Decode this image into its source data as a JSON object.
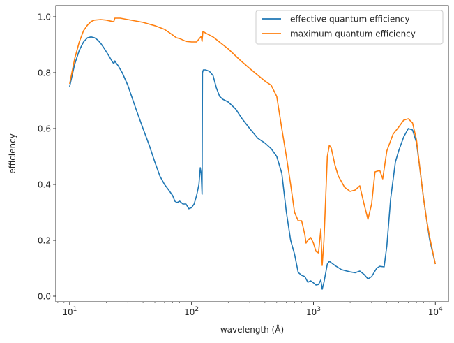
{
  "chart_data": {
    "type": "line",
    "title": "",
    "xlabel": "wavelength (Å)",
    "ylabel": "efficiency",
    "xscale": "log",
    "xlim": [
      7.7,
      12800
    ],
    "ylim": [
      -0.02,
      1.04
    ],
    "x_ticks": [
      {
        "value": 10,
        "base": "10",
        "exp": "1"
      },
      {
        "value": 100,
        "base": "10",
        "exp": "2"
      },
      {
        "value": 1000,
        "base": "10",
        "exp": "3"
      },
      {
        "value": 10000,
        "base": "10",
        "exp": "4"
      }
    ],
    "y_ticks": [
      {
        "value": 0.0,
        "label": "0.0"
      },
      {
        "value": 0.2,
        "label": "0.2"
      },
      {
        "value": 0.4,
        "label": "0.4"
      },
      {
        "value": 0.6,
        "label": "0.6"
      },
      {
        "value": 0.8,
        "label": "0.8"
      },
      {
        "value": 1.0,
        "label": "1.0"
      }
    ],
    "grid": false,
    "legend": "top-right",
    "series": [
      {
        "name": "effective quantum efficiency",
        "color": "#1f77b4",
        "points": [
          [
            10,
            0.75
          ],
          [
            11,
            0.83
          ],
          [
            12,
            0.88
          ],
          [
            13,
            0.91
          ],
          [
            14,
            0.925
          ],
          [
            15,
            0.928
          ],
          [
            16,
            0.925
          ],
          [
            17,
            0.917
          ],
          [
            18,
            0.905
          ],
          [
            19,
            0.89
          ],
          [
            20,
            0.875
          ],
          [
            21,
            0.86
          ],
          [
            22,
            0.845
          ],
          [
            23,
            0.832
          ],
          [
            23.5,
            0.842
          ],
          [
            24,
            0.835
          ],
          [
            25,
            0.825
          ],
          [
            27,
            0.8
          ],
          [
            30,
            0.755
          ],
          [
            35,
            0.67
          ],
          [
            40,
            0.6
          ],
          [
            45,
            0.54
          ],
          [
            50,
            0.48
          ],
          [
            55,
            0.43
          ],
          [
            60,
            0.4
          ],
          [
            65,
            0.38
          ],
          [
            70,
            0.36
          ],
          [
            73,
            0.34
          ],
          [
            76,
            0.335
          ],
          [
            80,
            0.34
          ],
          [
            85,
            0.33
          ],
          [
            90,
            0.33
          ],
          [
            95,
            0.313
          ],
          [
            100,
            0.317
          ],
          [
            105,
            0.33
          ],
          [
            110,
            0.36
          ],
          [
            115,
            0.4
          ],
          [
            118,
            0.46
          ],
          [
            120,
            0.44
          ],
          [
            122,
            0.365
          ],
          [
            123,
            0.8
          ],
          [
            125,
            0.81
          ],
          [
            130,
            0.81
          ],
          [
            140,
            0.805
          ],
          [
            150,
            0.79
          ],
          [
            160,
            0.745
          ],
          [
            170,
            0.715
          ],
          [
            180,
            0.705
          ],
          [
            200,
            0.695
          ],
          [
            230,
            0.67
          ],
          [
            260,
            0.635
          ],
          [
            300,
            0.6
          ],
          [
            350,
            0.565
          ],
          [
            400,
            0.548
          ],
          [
            450,
            0.528
          ],
          [
            500,
            0.5
          ],
          [
            550,
            0.44
          ],
          [
            600,
            0.3
          ],
          [
            650,
            0.2
          ],
          [
            700,
            0.15
          ],
          [
            750,
            0.085
          ],
          [
            800,
            0.075
          ],
          [
            850,
            0.07
          ],
          [
            900,
            0.05
          ],
          [
            950,
            0.055
          ],
          [
            1000,
            0.048
          ],
          [
            1050,
            0.04
          ],
          [
            1100,
            0.042
          ],
          [
            1150,
            0.058
          ],
          [
            1180,
            0.025
          ],
          [
            1220,
            0.05
          ],
          [
            1300,
            0.115
          ],
          [
            1350,
            0.125
          ],
          [
            1500,
            0.11
          ],
          [
            1700,
            0.095
          ],
          [
            2000,
            0.087
          ],
          [
            2200,
            0.084
          ],
          [
            2400,
            0.09
          ],
          [
            2600,
            0.078
          ],
          [
            2800,
            0.062
          ],
          [
            3000,
            0.07
          ],
          [
            3300,
            0.1
          ],
          [
            3500,
            0.107
          ],
          [
            3800,
            0.105
          ],
          [
            4000,
            0.18
          ],
          [
            4300,
            0.35
          ],
          [
            4700,
            0.48
          ],
          [
            5000,
            0.52
          ],
          [
            5500,
            0.57
          ],
          [
            6000,
            0.6
          ],
          [
            6500,
            0.595
          ],
          [
            7000,
            0.55
          ],
          [
            7500,
            0.45
          ],
          [
            8000,
            0.35
          ],
          [
            8500,
            0.27
          ],
          [
            9000,
            0.2
          ],
          [
            10000,
            0.115
          ]
        ]
      },
      {
        "name": "maximum quantum efficiency",
        "color": "#ff7f0e",
        "points": [
          [
            10,
            0.76
          ],
          [
            11,
            0.85
          ],
          [
            12,
            0.91
          ],
          [
            13,
            0.95
          ],
          [
            14,
            0.97
          ],
          [
            15,
            0.983
          ],
          [
            16,
            0.988
          ],
          [
            18,
            0.99
          ],
          [
            20,
            0.988
          ],
          [
            23,
            0.982
          ],
          [
            23.5,
            0.995
          ],
          [
            26,
            0.995
          ],
          [
            30,
            0.99
          ],
          [
            40,
            0.98
          ],
          [
            50,
            0.968
          ],
          [
            60,
            0.955
          ],
          [
            70,
            0.935
          ],
          [
            75,
            0.925
          ],
          [
            80,
            0.922
          ],
          [
            90,
            0.912
          ],
          [
            100,
            0.91
          ],
          [
            110,
            0.91
          ],
          [
            120,
            0.93
          ],
          [
            122,
            0.912
          ],
          [
            124,
            0.948
          ],
          [
            130,
            0.942
          ],
          [
            150,
            0.928
          ],
          [
            200,
            0.885
          ],
          [
            250,
            0.845
          ],
          [
            300,
            0.815
          ],
          [
            400,
            0.77
          ],
          [
            450,
            0.755
          ],
          [
            500,
            0.715
          ],
          [
            550,
            0.6
          ],
          [
            600,
            0.5
          ],
          [
            650,
            0.4
          ],
          [
            700,
            0.3
          ],
          [
            750,
            0.27
          ],
          [
            800,
            0.27
          ],
          [
            850,
            0.22
          ],
          [
            870,
            0.19
          ],
          [
            900,
            0.2
          ],
          [
            950,
            0.21
          ],
          [
            1000,
            0.19
          ],
          [
            1050,
            0.16
          ],
          [
            1100,
            0.155
          ],
          [
            1150,
            0.24
          ],
          [
            1180,
            0.11
          ],
          [
            1220,
            0.2
          ],
          [
            1300,
            0.5
          ],
          [
            1350,
            0.54
          ],
          [
            1400,
            0.53
          ],
          [
            1500,
            0.47
          ],
          [
            1600,
            0.43
          ],
          [
            1800,
            0.39
          ],
          [
            2000,
            0.375
          ],
          [
            2200,
            0.38
          ],
          [
            2400,
            0.395
          ],
          [
            2600,
            0.33
          ],
          [
            2800,
            0.275
          ],
          [
            3000,
            0.33
          ],
          [
            3200,
            0.445
          ],
          [
            3500,
            0.45
          ],
          [
            3700,
            0.42
          ],
          [
            4000,
            0.52
          ],
          [
            4500,
            0.58
          ],
          [
            5000,
            0.605
          ],
          [
            5500,
            0.63
          ],
          [
            6000,
            0.635
          ],
          [
            6500,
            0.62
          ],
          [
            7000,
            0.56
          ],
          [
            7500,
            0.45
          ],
          [
            8000,
            0.35
          ],
          [
            8500,
            0.27
          ],
          [
            9000,
            0.21
          ],
          [
            10000,
            0.115
          ]
        ]
      }
    ]
  }
}
